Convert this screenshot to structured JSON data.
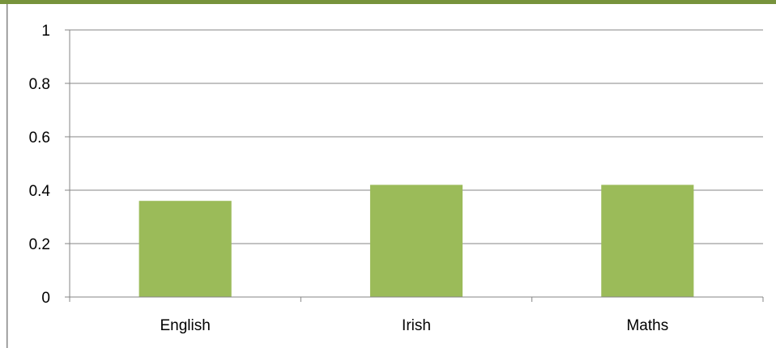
{
  "chart_data": {
    "type": "bar",
    "title": "",
    "xlabel": "",
    "ylabel": "",
    "categories": [
      "English",
      "Irish",
      "Maths"
    ],
    "values": [
      0.36,
      0.42,
      0.42
    ],
    "ylim": [
      0,
      1
    ],
    "yticks": [
      "0",
      "0.2",
      "0.4",
      "0.6",
      "0.8",
      "1"
    ],
    "grid": true,
    "legend": "none",
    "colors": {
      "bar": "#9BBB59",
      "frame_accent": "#77933C",
      "gridline": "#868686",
      "axis": "#868686"
    }
  }
}
